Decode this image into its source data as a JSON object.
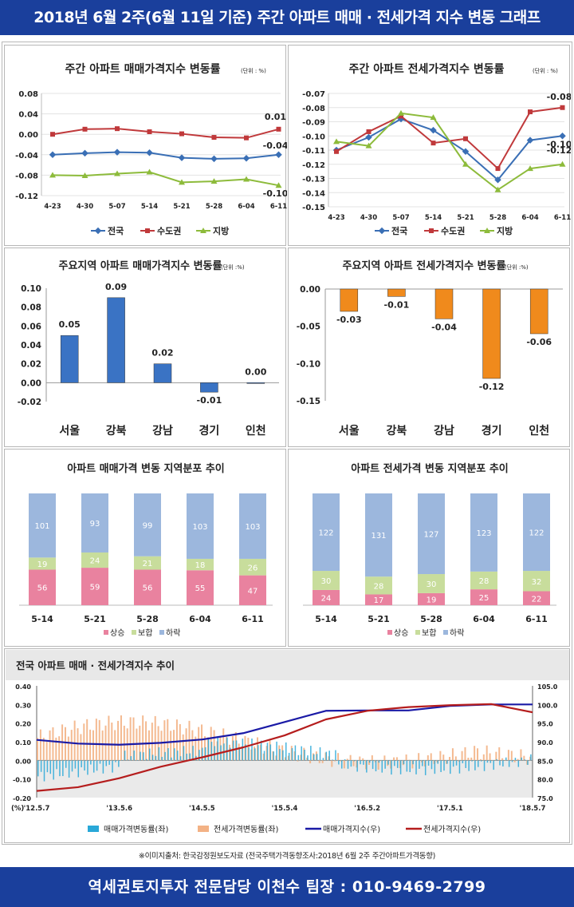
{
  "header": {
    "title": "2018년 6월 2주(6월 11일 기준) 주간 아파트 매매 · 전세가격 지수 변동 그래프"
  },
  "footer": {
    "contact": "역세권토지투자 전문담당 이천수 팀장 : 010-9469-2799"
  },
  "source_note": "※이미지출처: 한국감정원보도자료 (전국주택가격동향조사:2018년 6월 2주 주간아파트가격동향)",
  "chart_data": [
    {
      "id": "weekly-sale",
      "type": "line",
      "title": "주간 아파트 매매가격지수 변동률",
      "unit_note": "(단위 : %)",
      "categories": [
        "4-23",
        "4-30",
        "5-07",
        "5-14",
        "5-21",
        "5-28",
        "6-04",
        "6-11"
      ],
      "ylim": [
        -0.12,
        0.08
      ],
      "yticks": [
        "0.08",
        "0.04",
        "0.00",
        "-0.04",
        "-0.08",
        "-0.12"
      ],
      "series": [
        {
          "name": "전국",
          "color": "#3a6fb5",
          "values": [
            -0.04,
            -0.037,
            -0.035,
            -0.036,
            -0.046,
            -0.048,
            -0.047,
            -0.04
          ]
        },
        {
          "name": "수도권",
          "color": "#c0393b",
          "values": [
            0.0,
            0.01,
            0.011,
            0.005,
            0.001,
            -0.006,
            -0.007,
            0.01
          ]
        },
        {
          "name": "지방",
          "color": "#8dbb3b",
          "values": [
            -0.08,
            -0.081,
            -0.077,
            -0.074,
            -0.094,
            -0.092,
            -0.088,
            -0.1
          ]
        }
      ],
      "end_labels": [
        "-0.04",
        "0.01",
        "-0.10"
      ]
    },
    {
      "id": "weekly-jeonse",
      "type": "line",
      "title": "주간 아파트 전세가격지수 변동률",
      "unit_note": "(단위 : %)",
      "categories": [
        "4-23",
        "4-30",
        "5-07",
        "5-14",
        "5-21",
        "5-28",
        "6-04",
        "6-11"
      ],
      "ylim": [
        -0.15,
        -0.07
      ],
      "yticks": [
        "-0.07",
        "-0.08",
        "-0.09",
        "-0.10",
        "-0.11",
        "-0.12",
        "-0.13",
        "-0.14",
        "-0.15"
      ],
      "series": [
        {
          "name": "전국",
          "color": "#3a6fb5",
          "values": [
            -0.11,
            -0.101,
            -0.088,
            -0.096,
            -0.111,
            -0.131,
            -0.103,
            -0.1
          ]
        },
        {
          "name": "수도권",
          "color": "#c0393b",
          "values": [
            -0.111,
            -0.097,
            -0.086,
            -0.105,
            -0.102,
            -0.123,
            -0.083,
            -0.08
          ]
        },
        {
          "name": "지방",
          "color": "#8dbb3b",
          "values": [
            -0.104,
            -0.107,
            -0.084,
            -0.087,
            -0.12,
            -0.138,
            -0.123,
            -0.12
          ]
        }
      ],
      "end_labels": [
        "-0.10",
        "-0.08",
        "-0.12"
      ]
    },
    {
      "id": "region-sale",
      "type": "bar",
      "title": "주요지역 아파트 매매가격지수 변동률",
      "unit_note": "(단위 :%)",
      "categories": [
        "서울",
        "강북",
        "강남",
        "경기",
        "인천"
      ],
      "values": [
        0.05,
        0.09,
        0.02,
        -0.01,
        0.0
      ],
      "labels": [
        "0.05",
        "0.09",
        "0.02",
        "-0.01",
        "0.00"
      ],
      "ylim": [
        -0.02,
        0.1
      ],
      "yticks": [
        "0.10",
        "0.08",
        "0.06",
        "0.04",
        "0.02",
        "0.00",
        "-0.02"
      ],
      "color": "#3a73c4"
    },
    {
      "id": "region-jeonse",
      "type": "bar",
      "title": "주요지역 아파트 전세가격지수 변동률",
      "unit_note": "(단위 :%)",
      "categories": [
        "서울",
        "강북",
        "강남",
        "경기",
        "인천"
      ],
      "values": [
        -0.03,
        -0.01,
        -0.04,
        -0.12,
        -0.06
      ],
      "labels": [
        "-0.03",
        "-0.01",
        "-0.04",
        "-0.12",
        "-0.06"
      ],
      "ylim": [
        -0.15,
        0.0
      ],
      "yticks": [
        "0.00",
        "-0.05",
        "-0.10",
        "-0.15"
      ],
      "color": "#f08a1c"
    },
    {
      "id": "dist-sale",
      "type": "bar",
      "stacked": true,
      "title": "아파트 매매가격 변동 지역분포 추이",
      "categories": [
        "5-14",
        "5-21",
        "5-28",
        "6-04",
        "6-11"
      ],
      "series": [
        {
          "name": "상승",
          "color": "#e9829f",
          "values": [
            56,
            59,
            56,
            55,
            47
          ]
        },
        {
          "name": "보합",
          "color": "#c8dd9c",
          "values": [
            19,
            24,
            21,
            18,
            26
          ]
        },
        {
          "name": "하락",
          "color": "#9cb7dd",
          "values": [
            101,
            93,
            99,
            103,
            103
          ]
        }
      ]
    },
    {
      "id": "dist-jeonse",
      "type": "bar",
      "stacked": true,
      "title": "아파트 전세가격 변동 지역분포 추이",
      "categories": [
        "5-14",
        "5-21",
        "5-28",
        "6-04",
        "6-11"
      ],
      "series": [
        {
          "name": "상승",
          "color": "#e9829f",
          "values": [
            24,
            17,
            19,
            25,
            22
          ]
        },
        {
          "name": "보합",
          "color": "#c8dd9c",
          "values": [
            30,
            28,
            30,
            28,
            32
          ]
        },
        {
          "name": "하락",
          "color": "#9cb7dd",
          "values": [
            122,
            131,
            127,
            123,
            122
          ]
        }
      ]
    },
    {
      "id": "long-trend",
      "type": "line",
      "title": "전국 아파트 매매 · 전세가격지수 추이",
      "x_ticks": [
        "'12.5.7",
        "'13.5.6",
        "'14.5.5",
        "'15.5.4",
        "'16.5.2",
        "'17.5.1",
        "'18.5.7"
      ],
      "x_unit": "(%)",
      "left_ylim": [
        -0.2,
        0.4
      ],
      "left_yticks": [
        "0.40",
        "0.30",
        "0.20",
        "0.10",
        "0.00",
        "-0.10",
        "-0.20"
      ],
      "right_ylim": [
        75.0,
        105.0
      ],
      "right_yticks": [
        "105.0",
        "100.0",
        "95.0",
        "90.0",
        "85.0",
        "80.0",
        "75.0"
      ],
      "series": [
        {
          "name": "매매가격변동률(좌)",
          "kind": "bar",
          "axis": "left",
          "color": "#29a8d8"
        },
        {
          "name": "전세가격변동률(좌)",
          "kind": "bar",
          "axis": "left",
          "color": "#f3b285"
        },
        {
          "name": "매매가격지수(우)",
          "kind": "line",
          "axis": "right",
          "color": "#1a1aa6",
          "x": [
            0,
            0.5,
            1.0,
            1.5,
            2.0,
            2.5,
            3.0,
            3.5,
            4.0,
            4.5,
            5.0,
            5.5,
            6.0
          ],
          "values": [
            90.5,
            89.5,
            89.2,
            89.7,
            90.6,
            92.3,
            95.3,
            98.3,
            98.4,
            98.4,
            99.6,
            100.0,
            100.0
          ]
        },
        {
          "name": "전세가격지수(우)",
          "kind": "line",
          "axis": "right",
          "color": "#b51d1d",
          "x": [
            0,
            0.5,
            1.0,
            1.5,
            2.0,
            2.5,
            3.0,
            3.5,
            4.0,
            4.5,
            5.0,
            5.5,
            6.0
          ],
          "values": [
            76.8,
            77.8,
            80.2,
            83.3,
            85.8,
            88.5,
            91.7,
            96.0,
            98.3,
            99.3,
            99.8,
            100.1,
            97.9
          ]
        }
      ]
    }
  ]
}
